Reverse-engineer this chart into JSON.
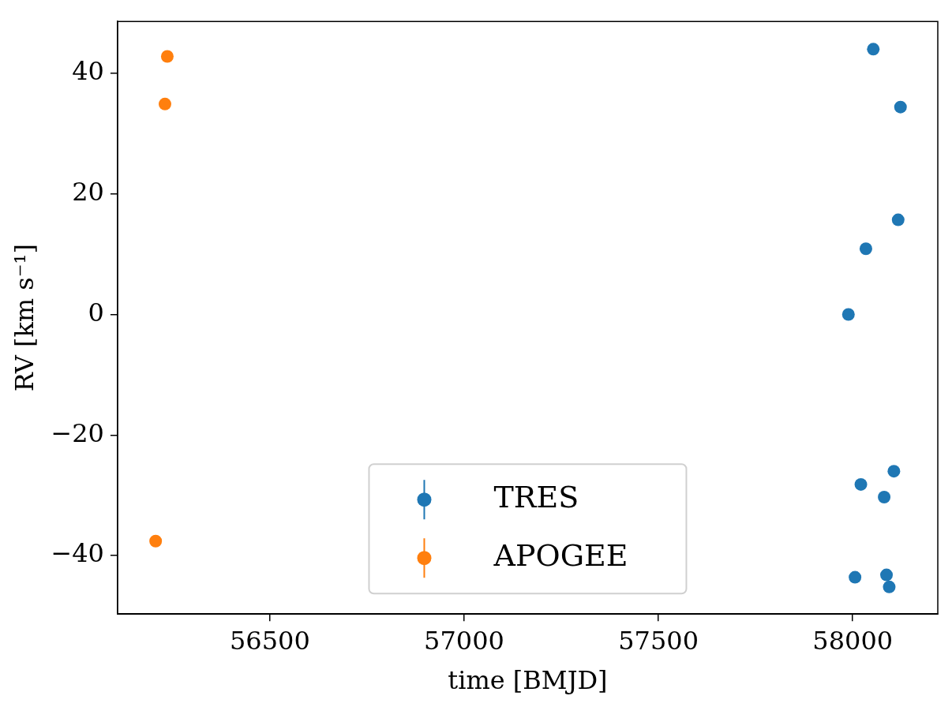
{
  "chart_data": {
    "type": "scatter",
    "xlabel": "time [BMJD]",
    "ylabel": "RV [km s⁻¹]",
    "xlim": [
      56108,
      58219
    ],
    "ylim": [
      -49.7,
      48.6
    ],
    "xticks": [
      56500,
      57000,
      57500,
      58000
    ],
    "yticks": [
      -40,
      -20,
      0,
      20,
      40
    ],
    "grid": false,
    "legend": "bottom",
    "marker": "circle",
    "series": [
      {
        "name": "TRES",
        "color": "#1f77b4",
        "x": [
          57989,
          58053,
          58123,
          58117,
          58034,
          58106,
          58021,
          58081,
          58006,
          58087,
          58094
        ],
        "values": [
          0,
          44.0,
          34.4,
          15.7,
          10.9,
          -26.0,
          -28.2,
          -30.3,
          -43.6,
          -43.2,
          -45.2
        ]
      },
      {
        "name": "APOGEE",
        "color": "#ff7f0e",
        "x": [
          56236,
          56230,
          56206
        ],
        "values": [
          42.8,
          34.9,
          -37.6
        ]
      }
    ]
  }
}
